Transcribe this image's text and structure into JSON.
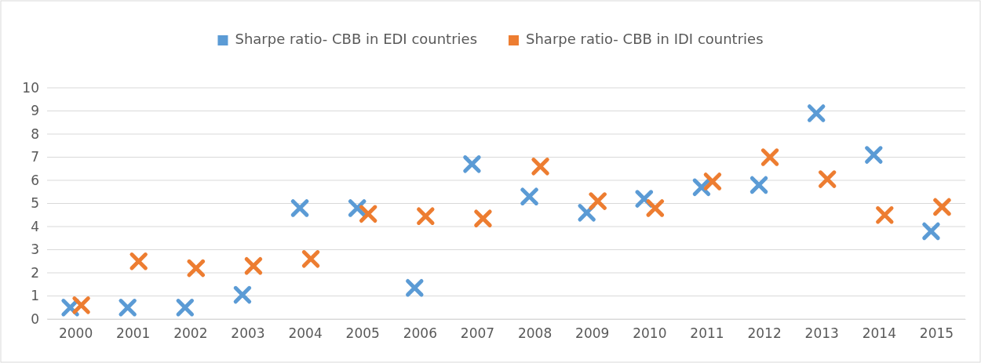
{
  "chart_data": {
    "type": "scatter",
    "categories": [
      "2000",
      "2001",
      "2002",
      "2003",
      "2004",
      "2005",
      "2006",
      "2007",
      "2008",
      "2009",
      "2010",
      "2011",
      "2012",
      "2013",
      "2014",
      "2015"
    ],
    "series": [
      {
        "name": "Sharpe ratio- CBB in EDI countries",
        "color": "#5b9bd5",
        "values": [
          0.5,
          0.5,
          0.5,
          1.05,
          4.8,
          4.8,
          1.35,
          6.7,
          5.3,
          4.6,
          5.2,
          5.7,
          5.8,
          8.9,
          7.1,
          3.8
        ]
      },
      {
        "name": "Sharpe ratio- CBB in IDI countries",
        "color": "#ed7d31",
        "values": [
          0.6,
          2.5,
          2.2,
          2.3,
          2.6,
          4.55,
          4.45,
          4.35,
          6.6,
          5.1,
          4.8,
          5.95,
          7.0,
          6.05,
          4.5,
          4.85
        ]
      }
    ],
    "ylim": [
      0,
      10
    ],
    "yticks": [
      0,
      1,
      2,
      3,
      4,
      5,
      6,
      7,
      8,
      9,
      10
    ],
    "grid": "y",
    "legend": "top",
    "marker": "cross"
  }
}
